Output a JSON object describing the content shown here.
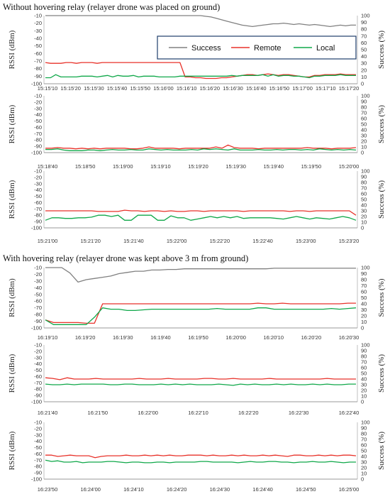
{
  "titles": {
    "without": "Without hovering relay (relayer drone was placed on ground)",
    "with": "With hovering relay (relayer drone was kept above 3 m from ground)"
  },
  "axes": {
    "left_label": "RSSI (dBm)",
    "right_label": "Success (%)",
    "left_ticks": [
      "-10",
      "-20",
      "-30",
      "-40",
      "-50",
      "-60",
      "-70",
      "-80",
      "-90",
      "-100"
    ],
    "right_ticks": [
      "100",
      "90",
      "80",
      "70",
      "60",
      "50",
      "40",
      "30",
      "20",
      "10",
      "0"
    ]
  },
  "legend": {
    "success": "Success",
    "remote": "Remote",
    "local": "Local"
  },
  "colors": {
    "success": "#808080",
    "remote": "#e8322a",
    "local": "#10a84a",
    "axis": "#999999"
  },
  "chart_data": [
    {
      "type": "line",
      "ylim": [
        -100,
        -10
      ],
      "y2lim": [
        0,
        100
      ],
      "x_ticks": [
        "15:15'10",
        "15:15'20",
        "15:15'30",
        "15:15'40",
        "15:15'50",
        "15:16'00",
        "15:16'10",
        "15:16'20",
        "15:16'30",
        "15:16'40",
        "15:16'50",
        "15:17'00",
        "15:17'10",
        "15:17'20"
      ],
      "series": [
        {
          "name": "Success",
          "axis": "right",
          "values": [
            100,
            100,
            100,
            100,
            100,
            100,
            100,
            100,
            100,
            100,
            100,
            100,
            100,
            100,
            100,
            100,
            100,
            100,
            100,
            100,
            100,
            100,
            100,
            100,
            100,
            100,
            100,
            100,
            100,
            100,
            100,
            99,
            98,
            96,
            94,
            92,
            90,
            88,
            86,
            85,
            84,
            85,
            86,
            87,
            88,
            88,
            89,
            88,
            87,
            88,
            87,
            86,
            87,
            86,
            85,
            84,
            85,
            86,
            85,
            86,
            86
          ]
        },
        {
          "name": "Remote",
          "axis": "left",
          "values": [
            -72,
            -73,
            -73,
            -73,
            -72,
            -72,
            -73,
            -72,
            -72,
            -72,
            -73,
            -72,
            -72,
            -72,
            -72,
            -72,
            -72,
            -72,
            -72,
            -72,
            -72,
            -72,
            -72,
            -72,
            -72,
            -72,
            -72,
            -91,
            -91,
            -92,
            -92,
            -93,
            -93,
            -93,
            -92,
            -92,
            -91,
            -90,
            -89,
            -88,
            -88,
            -89,
            -88,
            -87,
            -88,
            -89,
            -88,
            -88,
            -89,
            -90,
            -91,
            -91,
            -89,
            -89,
            -88,
            -88,
            -88,
            -87,
            -88,
            -88,
            -88
          ]
        },
        {
          "name": "Local",
          "axis": "left",
          "values": [
            -92,
            -92,
            -88,
            -91,
            -91,
            -91,
            -91,
            -90,
            -90,
            -90,
            -91,
            -90,
            -89,
            -91,
            -89,
            -90,
            -90,
            -89,
            -91,
            -90,
            -90,
            -90,
            -91,
            -91,
            -91,
            -91,
            -90,
            -90,
            -90,
            -90,
            -90,
            -90,
            -90,
            -90,
            -90,
            -90,
            -89,
            -90,
            -89,
            -89,
            -89,
            -89,
            -88,
            -90,
            -88,
            -90,
            -89,
            -89,
            -90,
            -90,
            -91,
            -92,
            -90,
            -90,
            -89,
            -89,
            -89,
            -88,
            -89,
            -89,
            -89
          ]
        }
      ]
    },
    {
      "type": "line",
      "ylim": [
        -100,
        -10
      ],
      "y2lim": [
        0,
        100
      ],
      "x_ticks": [
        "15:18'40",
        "15:18'50",
        "15:19'00",
        "15:19'10",
        "15:19'20",
        "15:19'30",
        "15:19'40",
        "15:19'50",
        "15:20'00"
      ],
      "series": [
        {
          "name": "Remote",
          "axis": "left",
          "values": [
            -93,
            -93,
            -92,
            -93,
            -93,
            -94,
            -93,
            -94,
            -93,
            -94,
            -93,
            -93,
            -93,
            -93,
            -94,
            -94,
            -93,
            -91,
            -93,
            -93,
            -93,
            -93,
            -94,
            -93,
            -93,
            -93,
            -93,
            -93,
            -91,
            -93,
            -88,
            -92,
            -93,
            -93,
            -93,
            -94,
            -93,
            -93,
            -93,
            -93,
            -93,
            -93,
            -93,
            -92,
            -93,
            -93,
            -93,
            -94,
            -93,
            -93,
            -93,
            -92
          ]
        },
        {
          "name": "Local",
          "axis": "left",
          "values": [
            -95,
            -95,
            -94,
            -96,
            -97,
            -97,
            -97,
            -96,
            -96,
            -97,
            -96,
            -95,
            -96,
            -96,
            -95,
            -96,
            -96,
            -94,
            -95,
            -96,
            -95,
            -96,
            -96,
            -96,
            -95,
            -96,
            -94,
            -95,
            -94,
            -95,
            -96,
            -94,
            -96,
            -96,
            -96,
            -95,
            -96,
            -96,
            -95,
            -96,
            -95,
            -95,
            -96,
            -95,
            -96,
            -94,
            -95,
            -96,
            -95,
            -96,
            -95,
            -96
          ]
        }
      ]
    },
    {
      "type": "line",
      "ylim": [
        -100,
        -10
      ],
      "y2lim": [
        0,
        100
      ],
      "x_ticks": [
        "15:21'00",
        "15:21'20",
        "15:21'40",
        "15:22'00",
        "15:22'20",
        "15:22'40",
        "15:23'00",
        "15:23'20"
      ],
      "series": [
        {
          "name": "Remote",
          "axis": "left",
          "values": [
            -73,
            -73,
            -73,
            -73,
            -73,
            -73,
            -73,
            -73,
            -74,
            -74,
            -74,
            -74,
            -72,
            -73,
            -73,
            -74,
            -73,
            -73,
            -74,
            -73,
            -74,
            -74,
            -73,
            -73,
            -74,
            -73,
            -73,
            -73,
            -73,
            -73,
            -74,
            -73,
            -73,
            -73,
            -73,
            -73,
            -73,
            -74,
            -73,
            -73,
            -74,
            -73,
            -73,
            -73,
            -73,
            -73,
            -73,
            -80
          ]
        },
        {
          "name": "Local",
          "axis": "left",
          "values": [
            -88,
            -84,
            -84,
            -85,
            -85,
            -84,
            -84,
            -83,
            -80,
            -80,
            -82,
            -80,
            -88,
            -88,
            -80,
            -80,
            -80,
            -88,
            -88,
            -81,
            -84,
            -84,
            -88,
            -86,
            -84,
            -82,
            -84,
            -82,
            -84,
            -82,
            -85,
            -84,
            -84,
            -84,
            -84,
            -85,
            -86,
            -84,
            -82,
            -84,
            -86,
            -84,
            -85,
            -86,
            -84,
            -82,
            -84,
            -88
          ]
        }
      ]
    },
    {
      "type": "line",
      "ylim": [
        -100,
        -10
      ],
      "y2lim": [
        0,
        100
      ],
      "x_ticks": [
        "16:19'10",
        "16:19'20",
        "16:19'30",
        "16:19'40",
        "16:19'50",
        "16:20'00",
        "16:20'10",
        "16:20'20",
        "16:20'30"
      ],
      "series": [
        {
          "name": "Success",
          "axis": "right",
          "values": [
            100,
            100,
            100,
            91,
            76,
            80,
            82,
            84,
            86,
            90,
            92,
            94,
            94,
            96,
            96,
            97,
            97,
            98,
            98,
            98,
            98,
            98,
            98,
            98,
            98,
            98,
            98,
            98,
            99,
            99,
            99,
            99,
            99,
            99,
            99,
            99,
            99,
            99,
            99
          ]
        },
        {
          "name": "Remote",
          "axis": "left",
          "values": [
            -88,
            -92,
            -92,
            -92,
            -92,
            -93,
            -93,
            -64,
            -64,
            -64,
            -64,
            -64,
            -64,
            -64,
            -64,
            -64,
            -64,
            -64,
            -64,
            -64,
            -64,
            -64,
            -64,
            -64,
            -64,
            -64,
            -63,
            -64,
            -64,
            -63,
            -64,
            -64,
            -64,
            -64,
            -64,
            -64,
            -64,
            -63,
            -63
          ]
        },
        {
          "name": "Local",
          "axis": "left",
          "values": [
            -88,
            -95,
            -95,
            -95,
            -95,
            -95,
            -84,
            -70,
            -72,
            -72,
            -74,
            -74,
            -73,
            -72,
            -72,
            -72,
            -72,
            -72,
            -72,
            -72,
            -72,
            -71,
            -72,
            -72,
            -72,
            -72,
            -70,
            -70,
            -72,
            -72,
            -72,
            -72,
            -72,
            -72,
            -72,
            -71,
            -72,
            -71,
            -70
          ]
        }
      ]
    },
    {
      "type": "line",
      "ylim": [
        -100,
        -10
      ],
      "y2lim": [
        0,
        100
      ],
      "x_ticks": [
        "16:21'40",
        "16:21'50",
        "16:22'00",
        "16:22'10",
        "16:22'20",
        "16:22'30",
        "16:22'40"
      ],
      "series": [
        {
          "name": "Remote",
          "axis": "left",
          "values": [
            -62,
            -63,
            -65,
            -62,
            -64,
            -64,
            -64,
            -63,
            -64,
            -64,
            -64,
            -64,
            -64,
            -63,
            -64,
            -64,
            -64,
            -63,
            -64,
            -64,
            -64,
            -64,
            -63,
            -63,
            -64,
            -64,
            -63,
            -64,
            -64,
            -64,
            -64,
            -63,
            -64,
            -64,
            -64,
            -64,
            -64,
            -64,
            -64,
            -63,
            -64,
            -64,
            -64,
            -64
          ]
        },
        {
          "name": "Local",
          "axis": "left",
          "values": [
            -72,
            -73,
            -73,
            -72,
            -73,
            -72,
            -72,
            -72,
            -72,
            -73,
            -73,
            -72,
            -72,
            -73,
            -73,
            -73,
            -72,
            -73,
            -72,
            -73,
            -72,
            -73,
            -73,
            -73,
            -72,
            -73,
            -74,
            -72,
            -73,
            -72,
            -73,
            -73,
            -72,
            -73,
            -72,
            -73,
            -73,
            -72,
            -73,
            -72,
            -73,
            -73,
            -72,
            -72
          ]
        }
      ]
    },
    {
      "type": "line",
      "ylim": [
        -100,
        -10
      ],
      "y2lim": [
        0,
        100
      ],
      "x_ticks": [
        "16:23'50",
        "16:24'00",
        "16:24'10",
        "16:24'20",
        "16:24'30",
        "16:24'40",
        "16:24'50",
        "16:25'00"
      ],
      "series": [
        {
          "name": "Remote",
          "axis": "left",
          "values": [
            -62,
            -62,
            -64,
            -63,
            -62,
            -63,
            -63,
            -63,
            -66,
            -64,
            -63,
            -63,
            -63,
            -62,
            -63,
            -63,
            -62,
            -63,
            -62,
            -63,
            -62,
            -63,
            -63,
            -62,
            -62,
            -62,
            -63,
            -62,
            -63,
            -63,
            -62,
            -63,
            -62,
            -63,
            -63,
            -62,
            -63,
            -62,
            -63,
            -64,
            -62,
            -62,
            -63,
            -63,
            -62,
            -63,
            -62,
            -63,
            -62,
            -62,
            -63
          ]
        },
        {
          "name": "Local",
          "axis": "left",
          "values": [
            -70,
            -72,
            -71,
            -73,
            -73,
            -72,
            -74,
            -73,
            -73,
            -73,
            -72,
            -72,
            -73,
            -74,
            -73,
            -73,
            -74,
            -74,
            -73,
            -73,
            -74,
            -73,
            -73,
            -73,
            -73,
            -72,
            -72,
            -73,
            -73,
            -73,
            -73,
            -74,
            -73,
            -72,
            -73,
            -73,
            -72,
            -72,
            -73,
            -73,
            -74,
            -73,
            -73,
            -72,
            -73,
            -73,
            -72,
            -73,
            -74,
            -73,
            -73
          ]
        }
      ]
    }
  ]
}
